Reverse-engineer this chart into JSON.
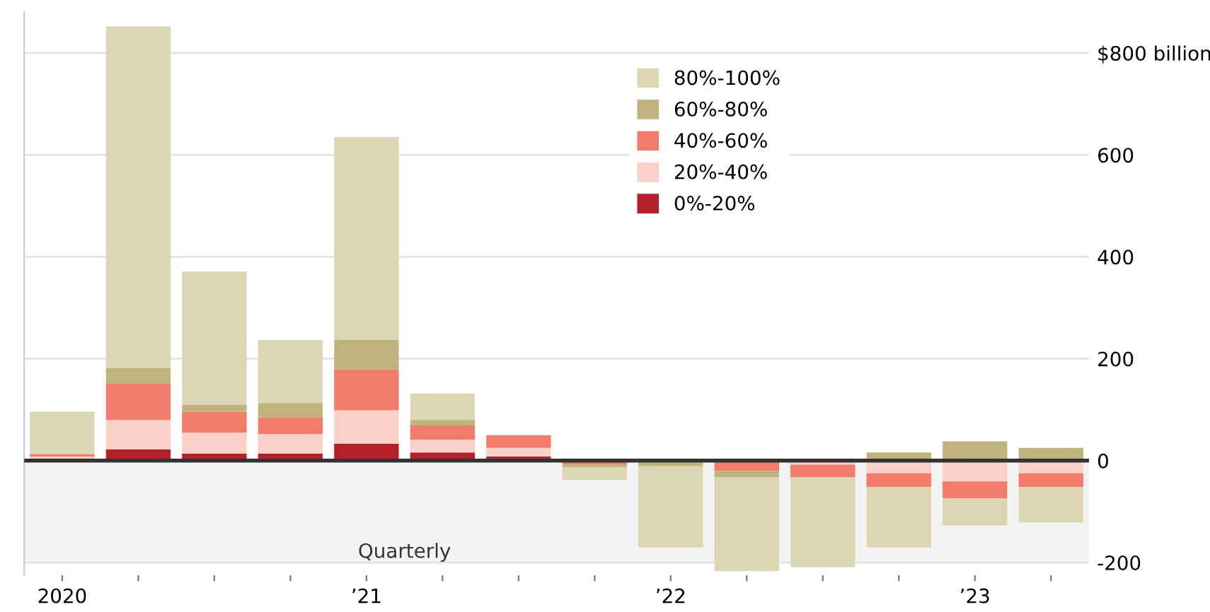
{
  "chart_data": {
    "type": "bar",
    "stacked": true,
    "categories": [
      "2020",
      null,
      null,
      null,
      "’21",
      null,
      null,
      null,
      "’22",
      null,
      null,
      null,
      "’23",
      null
    ],
    "series": [
      {
        "name": "0%-20%",
        "color": "#b51f2a",
        "values": [
          0,
          22,
          14,
          14,
          33,
          16,
          8,
          0,
          0,
          0,
          0,
          0,
          0,
          0
        ]
      },
      {
        "name": "20%-40%",
        "color": "#fbd0c8",
        "values": [
          8,
          58,
          41,
          38,
          66,
          25,
          17,
          0,
          0,
          0,
          -8,
          -25,
          -41,
          -25
        ]
      },
      {
        "name": "40%-60%",
        "color": "#f27c6c",
        "values": [
          5,
          71,
          41,
          33,
          80,
          28,
          25,
          -8,
          null,
          -20,
          -25,
          -27,
          -33,
          -27
        ]
      },
      {
        "name": "60%-80%",
        "color": "#bfb47e",
        "values": [
          0,
          31,
          14,
          28,
          58,
          11,
          0,
          -5,
          -11,
          -13,
          0,
          16,
          38,
          25
        ]
      },
      {
        "name": "80%-100%",
        "color": "#ddd6b5",
        "values": [
          83,
          670,
          261,
          124,
          398,
          52,
          0,
          -25,
          -159,
          -184,
          -176,
          -118,
          -53,
          -69
        ]
      }
    ],
    "ylim": [
      -225,
      880
    ],
    "yticks": [
      -200,
      0,
      200,
      400,
      600,
      {
        "value": 800,
        "label": "$800 billion"
      }
    ],
    "grid": "y",
    "legend": "top",
    "ref_lines": [
      {
        "axis": "y",
        "value": 0,
        "color": "#333333"
      }
    ],
    "bands": [
      {
        "axis": "y",
        "from": -200,
        "to": 0,
        "color": "#f3f3f3"
      }
    ],
    "annotations": [
      "Quarterly"
    ]
  }
}
